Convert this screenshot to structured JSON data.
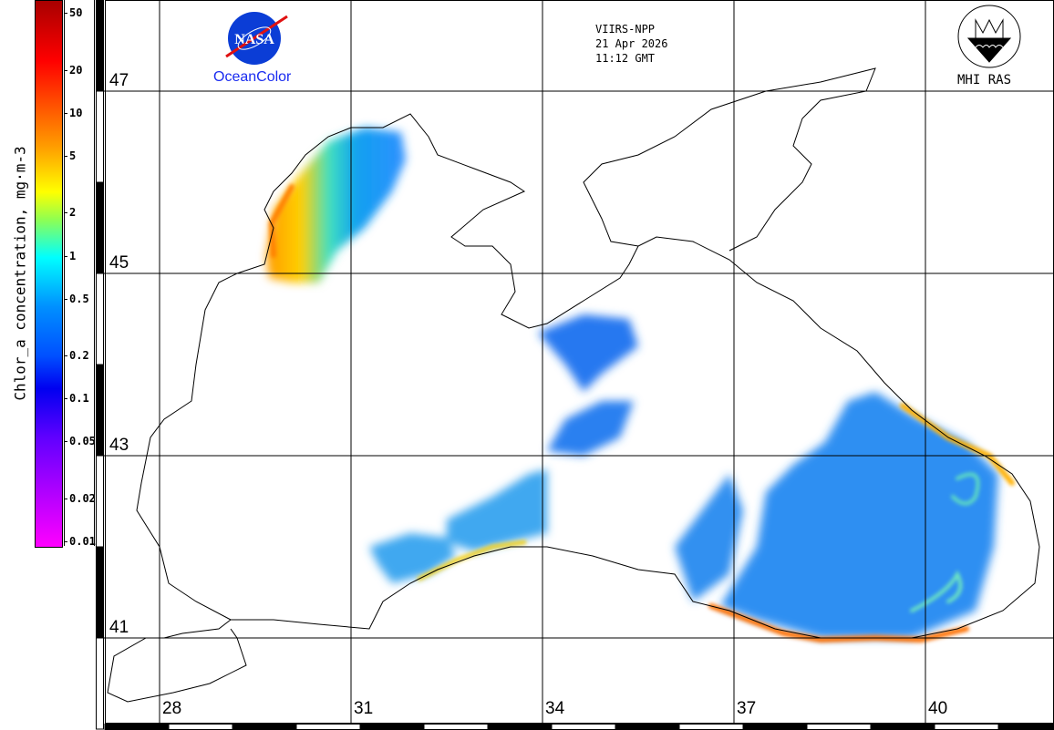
{
  "colorbar": {
    "label": "Chlor_a concentration, mg·m-3",
    "ticks": [
      {
        "label": "50",
        "value": 50
      },
      {
        "label": "20",
        "value": 20
      },
      {
        "label": "10",
        "value": 10
      },
      {
        "label": "5",
        "value": 5
      },
      {
        "label": "2",
        "value": 2
      },
      {
        "label": "1",
        "value": 1
      },
      {
        "label": "0.5",
        "value": 0.5
      },
      {
        "label": "0.2",
        "value": 0.2
      },
      {
        "label": "0.1",
        "value": 0.1
      },
      {
        "label": "0.05",
        "value": 0.05
      },
      {
        "label": "0.02",
        "value": 0.02
      },
      {
        "label": "0.01",
        "value": 0.01
      }
    ],
    "range": [
      0.01,
      60
    ]
  },
  "header": {
    "sensor": "VIIRS-NPP",
    "date": "21 Apr 2026",
    "time": "11:12 GMT"
  },
  "logos": {
    "nasa": "NASA",
    "oceancolor": "OceanColor",
    "mhi": "MHI RAS"
  },
  "latitudes": [
    "47",
    "45",
    "43",
    "41"
  ],
  "longitudes": [
    "28",
    "31",
    "34",
    "37",
    "40"
  ],
  "colors": {
    "land_water": "#ffffff",
    "coast": "#000000",
    "nasa_blue": "#0b3dd6",
    "oceancolor_text": "#1a2cf0"
  }
}
